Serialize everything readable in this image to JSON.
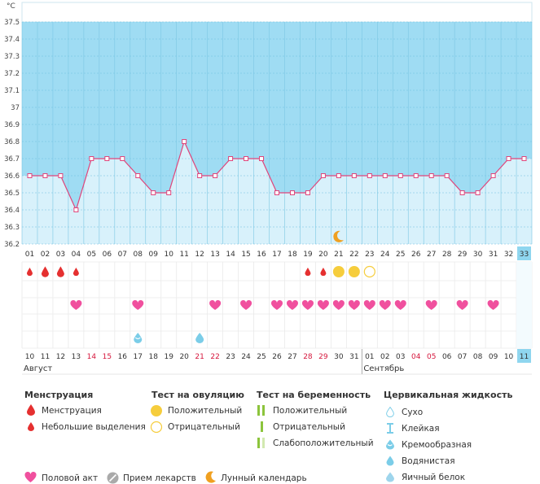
{
  "chart_data": {
    "type": "line",
    "unit": "°C",
    "ylim": [
      36.2,
      37.5
    ],
    "y_ticks": [
      "37.5",
      "37.4",
      "37.3",
      "37.2",
      "37.1",
      "37",
      "36.9",
      "36.8",
      "36.7",
      "36.6",
      "36.5",
      "36.4",
      "36.3",
      "36.2"
    ],
    "cycle_days": [
      "01",
      "02",
      "03",
      "04",
      "05",
      "06",
      "07",
      "08",
      "09",
      "10",
      "11",
      "12",
      "13",
      "14",
      "15",
      "16",
      "17",
      "18",
      "19",
      "20",
      "21",
      "22",
      "23",
      "24",
      "25",
      "26",
      "27",
      "28",
      "29",
      "30",
      "31",
      "32",
      "33"
    ],
    "temperatures": [
      36.6,
      36.6,
      36.6,
      36.4,
      36.7,
      36.7,
      36.7,
      36.6,
      36.5,
      36.5,
      36.8,
      36.6,
      36.6,
      36.7,
      36.7,
      36.7,
      36.5,
      36.5,
      36.5,
      36.6,
      36.6,
      36.6,
      36.6,
      36.6,
      36.6,
      36.6,
      36.6,
      36.6,
      36.5,
      36.5,
      36.6,
      36.7,
      36.7
    ],
    "highlight_day": "33",
    "dates": [
      {
        "label": "10",
        "red": false
      },
      {
        "label": "11",
        "red": false
      },
      {
        "label": "12",
        "red": false
      },
      {
        "label": "13",
        "red": false
      },
      {
        "label": "14",
        "red": true
      },
      {
        "label": "15",
        "red": true
      },
      {
        "label": "16",
        "red": false
      },
      {
        "label": "17",
        "red": false
      },
      {
        "label": "18",
        "red": false
      },
      {
        "label": "19",
        "red": false
      },
      {
        "label": "20",
        "red": false
      },
      {
        "label": "21",
        "red": true
      },
      {
        "label": "22",
        "red": true
      },
      {
        "label": "23",
        "red": false
      },
      {
        "label": "24",
        "red": false
      },
      {
        "label": "25",
        "red": false
      },
      {
        "label": "26",
        "red": false
      },
      {
        "label": "27",
        "red": false
      },
      {
        "label": "28",
        "red": true
      },
      {
        "label": "29",
        "red": true
      },
      {
        "label": "30",
        "red": false
      },
      {
        "label": "31",
        "red": false
      },
      {
        "label": "01",
        "red": false
      },
      {
        "label": "02",
        "red": false
      },
      {
        "label": "03",
        "red": false
      },
      {
        "label": "04",
        "red": true
      },
      {
        "label": "05",
        "red": true
      },
      {
        "label": "06",
        "red": false
      },
      {
        "label": "07",
        "red": false
      },
      {
        "label": "08",
        "red": false
      },
      {
        "label": "09",
        "red": false
      },
      {
        "label": "10",
        "red": false
      },
      {
        "label": "11",
        "red": false,
        "highlight": true
      }
    ],
    "months": [
      {
        "label": "Август",
        "start_index": 0
      },
      {
        "label": "Сентябрь",
        "start_index": 22
      }
    ],
    "menstruation": [
      {
        "day": 1,
        "kind": "light"
      },
      {
        "day": 2,
        "kind": "heavy"
      },
      {
        "day": 3,
        "kind": "heavy"
      },
      {
        "day": 4,
        "kind": "light"
      },
      {
        "day": 19,
        "kind": "light"
      },
      {
        "day": 20,
        "kind": "light"
      }
    ],
    "ovulation_tests": [
      {
        "day": 21,
        "result": "positive"
      },
      {
        "day": 22,
        "result": "positive"
      },
      {
        "day": 23,
        "result": "negative"
      }
    ],
    "intercourse_days": [
      4,
      8,
      13,
      15,
      17,
      18,
      19,
      20,
      21,
      22,
      23,
      24,
      25,
      27,
      29,
      31
    ],
    "cervical_fluid": [
      {
        "day": 8,
        "kind": "creamy"
      },
      {
        "day": 12,
        "kind": "watery"
      }
    ],
    "moon_days": [
      21
    ]
  },
  "legend": {
    "menstruation": {
      "title": "Менструация",
      "items": [
        "Менструация",
        "Небольшие выделения"
      ]
    },
    "ovulation": {
      "title": "Тест на овуляцию",
      "items": [
        "Положительный",
        "Отрицательный"
      ]
    },
    "pregnancy": {
      "title": "Тест на беременность",
      "items": [
        "Положительный",
        "Отрицательный",
        "Слабоположительный"
      ]
    },
    "cervical": {
      "title": "Цервикальная жидкость",
      "items": [
        "Сухо",
        "Клейкая",
        "Кремообразная",
        "Водянистая",
        "Яичный белок"
      ]
    },
    "bottom": [
      "Половой акт",
      "Прием лекарств",
      "Лунный календарь"
    ]
  },
  "colors": {
    "sky": "#9fdcf3",
    "fill": "#d8f1fb",
    "line": "#e0457b",
    "heart": "#f0509e",
    "drop": "#e53030",
    "yellow": "#f6cd3c",
    "teal": "#7bcde8",
    "moon": "#f0a020",
    "green": "#8cc43c",
    "gray": "#aaaaaa"
  }
}
